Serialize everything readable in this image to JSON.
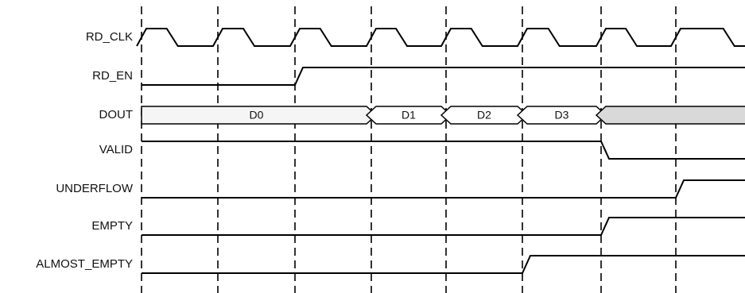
{
  "diagram": {
    "signals": [
      {
        "id": "rd_clk",
        "label": "RD_CLK",
        "kind": "clock"
      },
      {
        "id": "rd_en",
        "label": "RD_EN",
        "kind": "digital",
        "initial": 0,
        "transitions": [
          2
        ]
      },
      {
        "id": "dout",
        "label": "DOUT",
        "kind": "bus",
        "segments": [
          {
            "label": "D0",
            "start": 0,
            "end": 3,
            "fill": "#f5f5f5"
          },
          {
            "label": "D1",
            "start": 3,
            "end": 4,
            "fill": "#ffffff"
          },
          {
            "label": "D2",
            "start": 4,
            "end": 5,
            "fill": "#ffffff"
          },
          {
            "label": "D3",
            "start": 5,
            "end": 6,
            "fill": "#ffffff"
          },
          {
            "label": "",
            "start": 6,
            "end": 8,
            "fill": "#d9d9d9"
          }
        ]
      },
      {
        "id": "valid",
        "label": "VALID",
        "kind": "digital",
        "initial": 1,
        "transitions": [
          6
        ]
      },
      {
        "id": "underflow",
        "label": "UNDERFLOW",
        "kind": "digital",
        "initial": 0,
        "transitions": [
          7
        ]
      },
      {
        "id": "empty",
        "label": "EMPTY",
        "kind": "digital",
        "initial": 0,
        "transitions": [
          6
        ]
      },
      {
        "id": "almost_empty",
        "label": "ALMOST_EMPTY",
        "kind": "digital",
        "initial": 0,
        "transitions": [
          5
        ]
      }
    ],
    "clock_edges": 8,
    "colors": {
      "line": "#000000",
      "text": "#111111",
      "d0_fill": "#f5f5f5",
      "bus_fill": "#ffffff",
      "undefined_fill": "#d9d9d9"
    }
  }
}
